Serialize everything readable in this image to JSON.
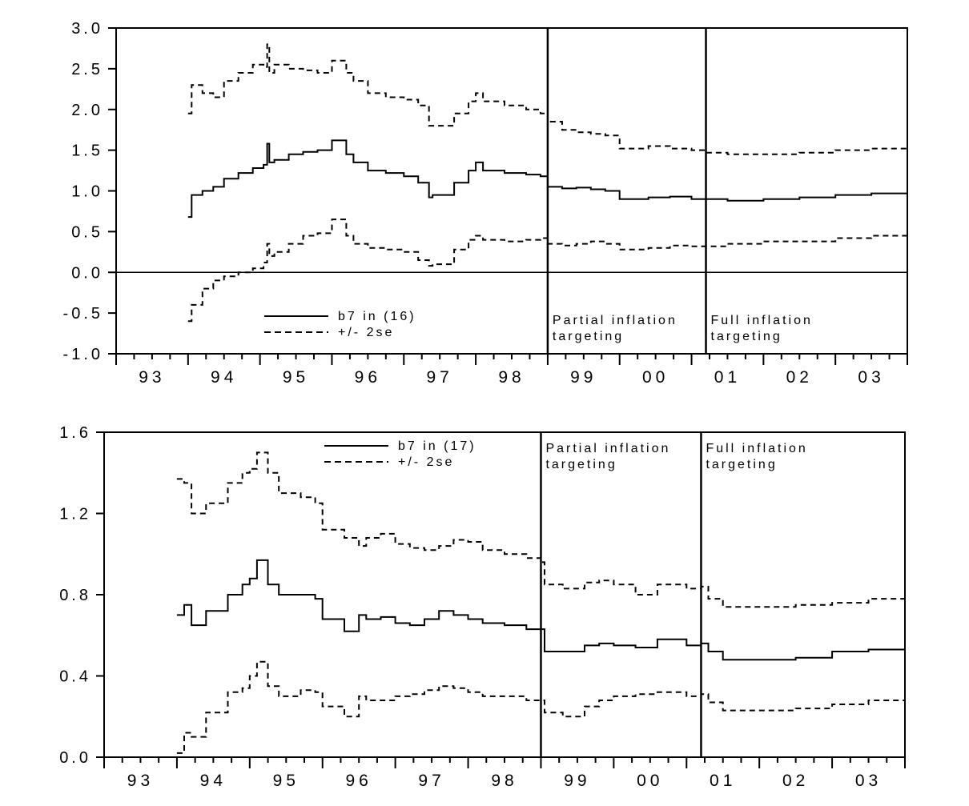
{
  "chart_data": [
    {
      "type": "line",
      "title": "",
      "xlabel": "",
      "ylabel": "",
      "x_tick_labels": [
        "93",
        "94",
        "95",
        "96",
        "97",
        "98",
        "99",
        "00",
        "01",
        "02",
        "03"
      ],
      "y_tick_labels": [
        "3.0",
        "2.5",
        "2.0",
        "1.5",
        "1.0",
        "0.5",
        "0.0",
        "-0.5",
        "-1.0"
      ],
      "xlim": [
        1993.0,
        2004.0
      ],
      "ylim": [
        -1.0,
        3.0
      ],
      "zero_line": true,
      "grid": false,
      "legend": {
        "placement": "bottom-left",
        "entries": [
          {
            "label": "b7 in (16)",
            "style": "solid"
          },
          {
            "label": "+/- 2se",
            "style": "dashed"
          }
        ]
      },
      "regions": [
        {
          "start": 1999.0,
          "lines": [
            "Partial inflation",
            "targeting"
          ]
        },
        {
          "start": 2001.2,
          "lines": [
            "Full inflation",
            "targeting"
          ]
        }
      ],
      "series": [
        {
          "style": "dashed",
          "x": [
            1994.0,
            1994.05,
            1994.2,
            1994.35,
            1994.5,
            1994.7,
            1994.9,
            1995.05,
            1995.1,
            1995.13,
            1995.2,
            1995.4,
            1995.6,
            1995.8,
            1996.0,
            1996.2,
            1996.3,
            1996.5,
            1996.75,
            1997.0,
            1997.2,
            1997.35,
            1997.4,
            1997.7,
            1997.9,
            1998.0,
            1998.1,
            1998.4,
            1998.7,
            1998.9,
            1999.0,
            1999.2,
            1999.4,
            1999.6,
            1999.8,
            2000.0,
            2000.4,
            2000.7,
            2001.0,
            2001.2,
            2001.5,
            2002.0,
            2002.5,
            2003.0,
            2003.5,
            2004.0
          ],
          "values": [
            1.95,
            2.3,
            2.2,
            2.15,
            2.35,
            2.45,
            2.55,
            2.52,
            2.8,
            2.45,
            2.55,
            2.5,
            2.48,
            2.45,
            2.6,
            2.45,
            2.35,
            2.2,
            2.15,
            2.12,
            2.05,
            1.8,
            1.8,
            1.95,
            2.1,
            2.2,
            2.1,
            2.05,
            2.0,
            1.95,
            1.85,
            1.75,
            1.72,
            1.7,
            1.68,
            1.52,
            1.55,
            1.52,
            1.5,
            1.47,
            1.45,
            1.45,
            1.47,
            1.5,
            1.52,
            1.55
          ]
        },
        {
          "style": "solid",
          "x": [
            1994.0,
            1994.05,
            1994.2,
            1994.35,
            1994.5,
            1994.7,
            1994.9,
            1995.05,
            1995.1,
            1995.13,
            1995.2,
            1995.4,
            1995.6,
            1995.8,
            1996.0,
            1996.2,
            1996.3,
            1996.5,
            1996.75,
            1997.0,
            1997.2,
            1997.35,
            1997.4,
            1997.7,
            1997.9,
            1998.0,
            1998.1,
            1998.4,
            1998.7,
            1998.9,
            1999.0,
            1999.2,
            1999.4,
            1999.6,
            1999.8,
            2000.0,
            2000.4,
            2000.7,
            2001.0,
            2001.2,
            2001.5,
            2002.0,
            2002.5,
            2003.0,
            2003.5,
            2004.0
          ],
          "values": [
            0.68,
            0.95,
            1.0,
            1.05,
            1.15,
            1.22,
            1.28,
            1.32,
            1.58,
            1.35,
            1.38,
            1.45,
            1.48,
            1.5,
            1.62,
            1.45,
            1.35,
            1.25,
            1.22,
            1.18,
            1.1,
            0.92,
            0.95,
            1.1,
            1.25,
            1.35,
            1.25,
            1.22,
            1.2,
            1.18,
            1.05,
            1.03,
            1.04,
            1.02,
            1.0,
            0.9,
            0.92,
            0.93,
            0.9,
            0.9,
            0.88,
            0.9,
            0.92,
            0.95,
            0.97,
            1.0
          ]
        },
        {
          "style": "dashed",
          "x": [
            1994.0,
            1994.05,
            1994.2,
            1994.35,
            1994.5,
            1994.7,
            1994.9,
            1995.05,
            1995.1,
            1995.13,
            1995.2,
            1995.4,
            1995.6,
            1995.8,
            1996.0,
            1996.2,
            1996.3,
            1996.5,
            1996.75,
            1997.0,
            1997.2,
            1997.35,
            1997.4,
            1997.7,
            1997.9,
            1998.0,
            1998.1,
            1998.4,
            1998.7,
            1998.9,
            1999.0,
            1999.2,
            1999.4,
            1999.6,
            1999.8,
            2000.0,
            2000.4,
            2000.7,
            2001.0,
            2001.2,
            2001.5,
            2002.0,
            2002.5,
            2003.0,
            2003.5,
            2004.0
          ],
          "values": [
            -0.6,
            -0.4,
            -0.2,
            -0.1,
            -0.05,
            0.0,
            0.05,
            0.12,
            0.35,
            0.2,
            0.25,
            0.35,
            0.45,
            0.48,
            0.65,
            0.45,
            0.35,
            0.3,
            0.28,
            0.25,
            0.15,
            0.08,
            0.1,
            0.28,
            0.4,
            0.45,
            0.4,
            0.38,
            0.4,
            0.42,
            0.35,
            0.33,
            0.35,
            0.38,
            0.35,
            0.28,
            0.3,
            0.33,
            0.32,
            0.32,
            0.35,
            0.38,
            0.38,
            0.42,
            0.45,
            0.48
          ]
        }
      ]
    },
    {
      "type": "line",
      "title": "",
      "xlabel": "",
      "ylabel": "",
      "x_tick_labels": [
        "93",
        "94",
        "95",
        "96",
        "97",
        "98",
        "99",
        "00",
        "01",
        "02",
        "03"
      ],
      "y_tick_labels": [
        "1.6",
        "1.2",
        "0.8",
        "0.4",
        "0.0"
      ],
      "xlim": [
        1993.0,
        2004.0
      ],
      "ylim": [
        0.0,
        1.6
      ],
      "zero_line": false,
      "grid": false,
      "legend": {
        "placement": "top-center",
        "entries": [
          {
            "label": "b7 in (17)",
            "style": "solid"
          },
          {
            "label": "+/- 2se",
            "style": "dashed"
          }
        ]
      },
      "regions": [
        {
          "start": 1999.0,
          "lines": [
            "Partial inflation",
            "targeting"
          ]
        },
        {
          "start": 2001.2,
          "lines": [
            "Full inflation",
            "targeting"
          ]
        }
      ],
      "series": [
        {
          "style": "dashed",
          "x": [
            1994.0,
            1994.1,
            1994.2,
            1994.4,
            1994.7,
            1994.9,
            1995.0,
            1995.1,
            1995.25,
            1995.4,
            1995.7,
            1995.9,
            1996.0,
            1996.3,
            1996.5,
            1996.6,
            1996.8,
            1997.0,
            1997.2,
            1997.4,
            1997.6,
            1997.8,
            1998.0,
            1998.2,
            1998.5,
            1998.8,
            1999.0,
            1999.05,
            1999.3,
            1999.6,
            1999.8,
            2000.0,
            2000.3,
            2000.6,
            2000.8,
            2001.0,
            2001.2,
            2001.3,
            2001.5,
            2002.0,
            2002.5,
            2003.0,
            2003.5,
            2004.0
          ],
          "values": [
            1.37,
            1.35,
            1.2,
            1.25,
            1.35,
            1.4,
            1.42,
            1.5,
            1.4,
            1.3,
            1.28,
            1.25,
            1.12,
            1.08,
            1.04,
            1.08,
            1.1,
            1.05,
            1.03,
            1.02,
            1.04,
            1.07,
            1.06,
            1.02,
            1.0,
            0.98,
            0.96,
            0.85,
            0.83,
            0.86,
            0.87,
            0.85,
            0.8,
            0.85,
            0.85,
            0.83,
            0.84,
            0.78,
            0.74,
            0.74,
            0.75,
            0.76,
            0.78,
            0.81
          ]
        },
        {
          "style": "solid",
          "x": [
            1994.0,
            1994.1,
            1994.2,
            1994.4,
            1994.7,
            1994.9,
            1995.0,
            1995.1,
            1995.25,
            1995.4,
            1995.7,
            1995.9,
            1996.0,
            1996.3,
            1996.5,
            1996.6,
            1996.8,
            1997.0,
            1997.2,
            1997.4,
            1997.6,
            1997.8,
            1998.0,
            1998.2,
            1998.5,
            1998.8,
            1999.0,
            1999.05,
            1999.3,
            1999.6,
            1999.8,
            2000.0,
            2000.3,
            2000.6,
            2000.8,
            2001.0,
            2001.2,
            2001.3,
            2001.5,
            2002.0,
            2002.5,
            2003.0,
            2003.5,
            2004.0
          ],
          "values": [
            0.7,
            0.75,
            0.65,
            0.72,
            0.8,
            0.85,
            0.88,
            0.97,
            0.85,
            0.8,
            0.8,
            0.78,
            0.68,
            0.62,
            0.7,
            0.68,
            0.69,
            0.66,
            0.65,
            0.68,
            0.72,
            0.7,
            0.68,
            0.66,
            0.65,
            0.63,
            0.63,
            0.52,
            0.52,
            0.55,
            0.56,
            0.55,
            0.54,
            0.58,
            0.58,
            0.55,
            0.56,
            0.52,
            0.48,
            0.48,
            0.49,
            0.52,
            0.53,
            0.56
          ]
        },
        {
          "style": "dashed",
          "x": [
            1994.0,
            1994.1,
            1994.2,
            1994.4,
            1994.7,
            1994.9,
            1995.0,
            1995.1,
            1995.25,
            1995.4,
            1995.7,
            1995.9,
            1996.0,
            1996.3,
            1996.5,
            1996.6,
            1996.8,
            1997.0,
            1997.2,
            1997.4,
            1997.6,
            1997.8,
            1998.0,
            1998.2,
            1998.5,
            1998.8,
            1999.0,
            1999.05,
            1999.3,
            1999.6,
            1999.8,
            2000.0,
            2000.3,
            2000.6,
            2000.8,
            2001.0,
            2001.2,
            2001.3,
            2001.5,
            2002.0,
            2002.5,
            2003.0,
            2003.5,
            2004.0
          ],
          "values": [
            0.02,
            0.12,
            0.1,
            0.22,
            0.32,
            0.34,
            0.4,
            0.47,
            0.35,
            0.3,
            0.33,
            0.32,
            0.25,
            0.2,
            0.3,
            0.28,
            0.28,
            0.3,
            0.31,
            0.33,
            0.35,
            0.34,
            0.32,
            0.3,
            0.3,
            0.28,
            0.28,
            0.22,
            0.2,
            0.25,
            0.28,
            0.3,
            0.31,
            0.32,
            0.32,
            0.3,
            0.31,
            0.27,
            0.23,
            0.23,
            0.24,
            0.26,
            0.28,
            0.31
          ]
        }
      ]
    }
  ]
}
